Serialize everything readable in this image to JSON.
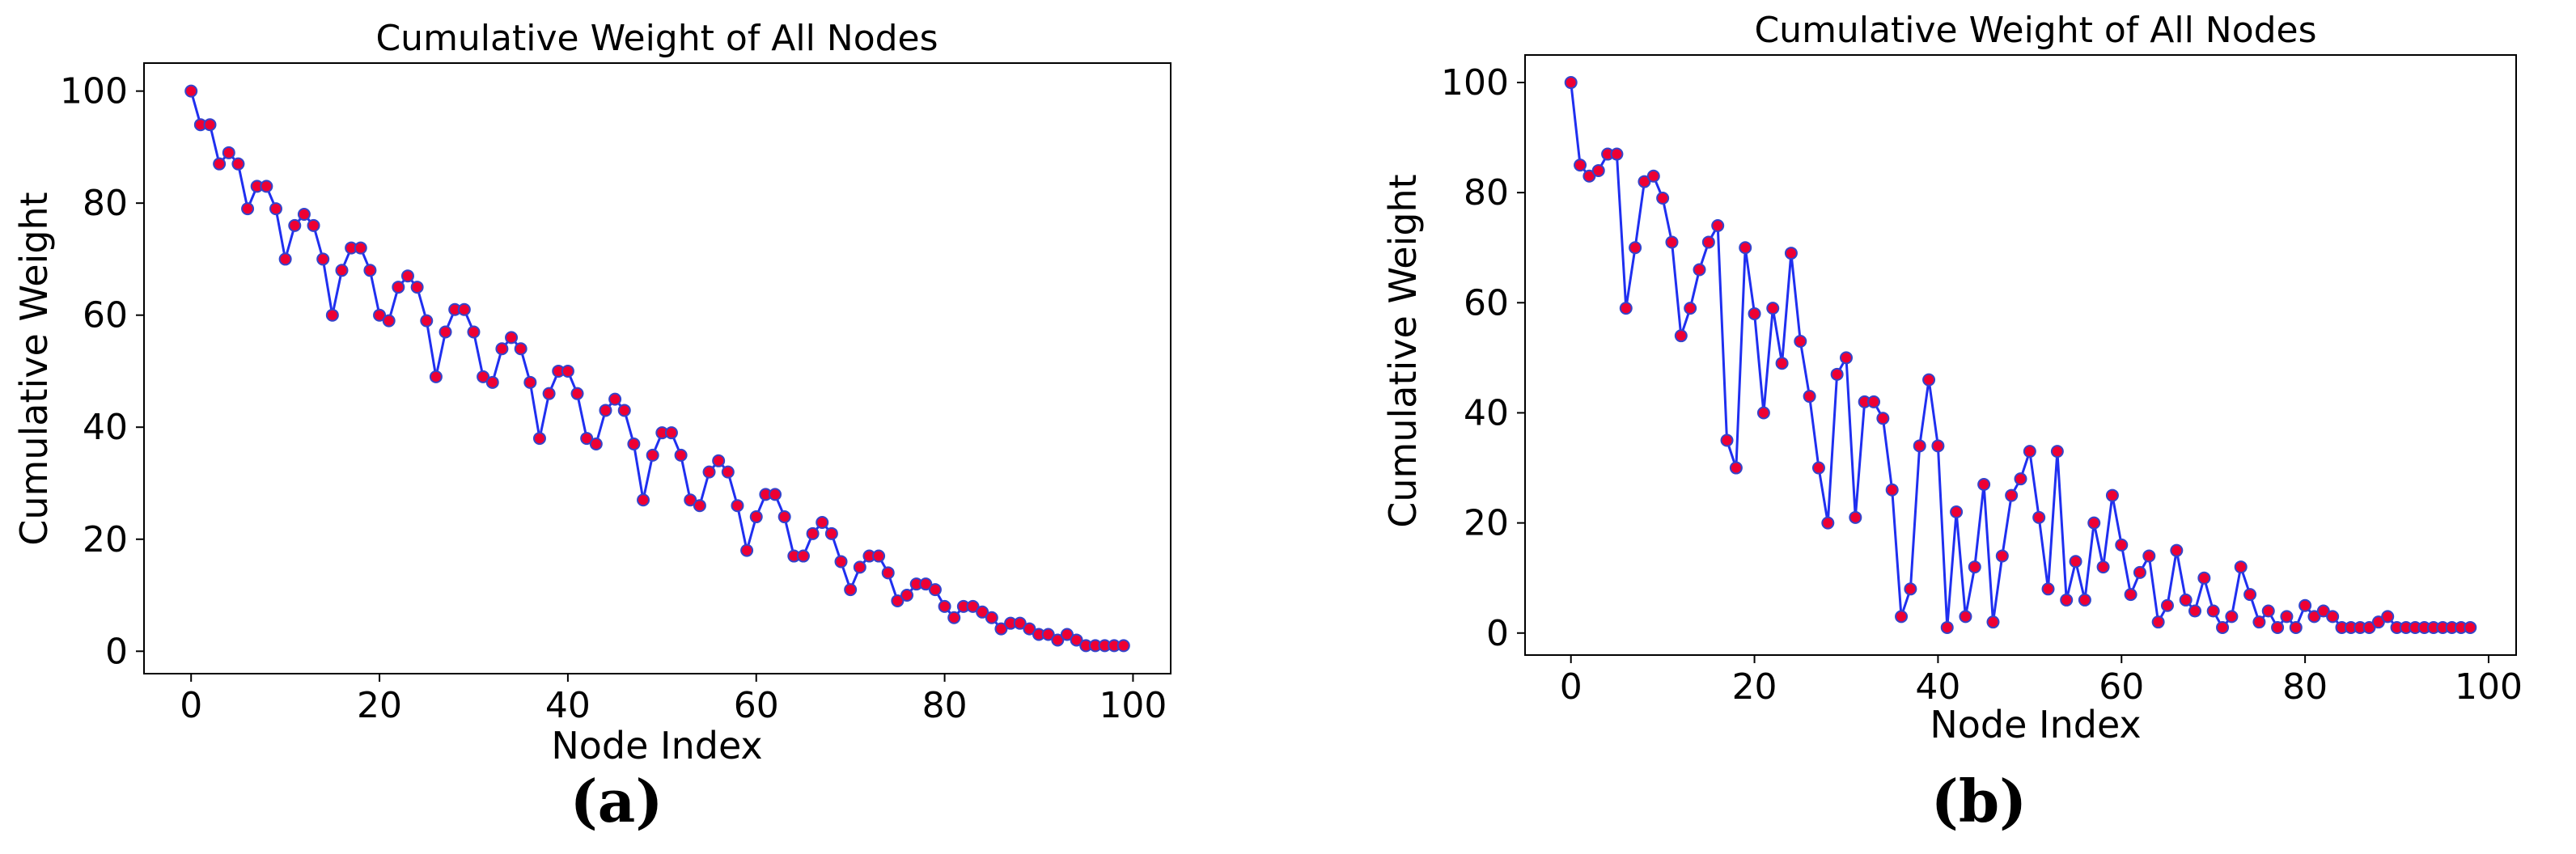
{
  "colors": {
    "line": "#1f2ff0",
    "marker_face": "#ee0033",
    "marker_edge": "#3344cc",
    "axes": "#000000"
  },
  "chart_data": [
    {
      "type": "line",
      "panel_label": "(a)",
      "title": "Cumulative Weight of All Nodes",
      "xlabel": "Node Index",
      "ylabel": "Cumulative Weight",
      "xlim": [
        -5,
        104
      ],
      "ylim": [
        -4,
        105
      ],
      "xticks": [
        "0",
        "20",
        "40",
        "60",
        "80",
        "100"
      ],
      "yticks": [
        "0",
        "20",
        "40",
        "60",
        "80",
        "100"
      ],
      "xtick_values": [
        0,
        20,
        40,
        60,
        80,
        100
      ],
      "ytick_values": [
        0,
        20,
        40,
        60,
        80,
        100
      ],
      "grid": false,
      "series": [
        {
          "x": [
            0,
            1,
            2,
            3,
            4,
            5,
            6,
            7,
            8,
            9,
            10,
            11,
            12,
            13,
            14,
            15,
            16,
            17,
            18,
            19,
            20,
            21,
            22,
            23,
            24,
            25,
            26,
            27,
            28,
            29,
            30,
            31,
            32,
            33,
            34,
            35,
            36,
            37,
            38,
            39,
            40,
            41,
            42,
            43,
            44,
            45,
            46,
            47,
            48,
            49,
            50,
            51,
            52,
            53,
            54,
            55,
            56,
            57,
            58,
            59,
            60,
            61,
            62,
            63,
            64,
            65,
            66,
            67,
            68,
            69,
            70,
            71,
            72,
            73,
            74,
            75,
            76,
            77,
            78,
            79,
            80,
            81,
            82,
            83,
            84,
            85,
            86,
            87,
            88,
            89,
            90,
            91,
            92,
            93,
            94,
            95,
            96,
            97,
            98,
            99
          ],
          "y": [
            100,
            94,
            94,
            87,
            89,
            87,
            79,
            83,
            83,
            79,
            70,
            76,
            78,
            76,
            70,
            60,
            68,
            72,
            72,
            68,
            60,
            59,
            65,
            67,
            65,
            59,
            49,
            57,
            61,
            61,
            57,
            49,
            48,
            54,
            56,
            54,
            48,
            38,
            46,
            50,
            50,
            46,
            38,
            37,
            43,
            45,
            43,
            37,
            27,
            35,
            39,
            39,
            35,
            27,
            26,
            32,
            34,
            32,
            26,
            18,
            24,
            28,
            28,
            24,
            17,
            17,
            21,
            23,
            21,
            16,
            11,
            15,
            17,
            17,
            14,
            9,
            10,
            12,
            12,
            11,
            8,
            6,
            8,
            8,
            7,
            6,
            4,
            5,
            5,
            4,
            3,
            3,
            2,
            3,
            2,
            1,
            1,
            1,
            1,
            1
          ]
        }
      ]
    },
    {
      "type": "line",
      "panel_label": "(b)",
      "title": "Cumulative Weight of All Nodes",
      "xlabel": "Node Index",
      "ylabel": "Cumulative Weight",
      "xlim": [
        -5,
        103
      ],
      "ylim": [
        -4,
        105
      ],
      "xticks": [
        "0",
        "20",
        "40",
        "60",
        "80",
        "100"
      ],
      "yticks": [
        "0",
        "20",
        "40",
        "60",
        "80",
        "100"
      ],
      "xtick_values": [
        0,
        20,
        40,
        60,
        80,
        100
      ],
      "ytick_values": [
        0,
        20,
        40,
        60,
        80,
        100
      ],
      "grid": false,
      "series": [
        {
          "x": [
            0,
            1,
            2,
            3,
            4,
            5,
            6,
            7,
            8,
            9,
            10,
            11,
            12,
            13,
            14,
            15,
            16,
            17,
            18,
            19,
            20,
            21,
            22,
            23,
            24,
            25,
            26,
            27,
            28,
            29,
            30,
            31,
            32,
            33,
            34,
            35,
            36,
            37,
            38,
            39,
            40,
            41,
            42,
            43,
            44,
            45,
            46,
            47,
            48,
            49,
            50,
            51,
            52,
            53,
            54,
            55,
            56,
            57,
            58,
            59,
            60,
            61,
            62,
            63,
            64,
            65,
            66,
            67,
            68,
            69,
            70,
            71,
            72,
            73,
            74,
            75,
            76,
            77,
            78,
            79,
            80,
            81,
            82,
            83,
            84,
            85,
            86,
            87,
            88,
            89,
            90,
            91,
            92,
            93,
            94,
            95,
            96,
            97,
            98
          ],
          "y": [
            100,
            85,
            83,
            84,
            87,
            87,
            59,
            70,
            82,
            83,
            79,
            71,
            54,
            59,
            66,
            71,
            74,
            35,
            30,
            70,
            58,
            40,
            59,
            49,
            69,
            53,
            43,
            30,
            20,
            47,
            50,
            21,
            42,
            42,
            39,
            26,
            3,
            8,
            34,
            46,
            34,
            1,
            22,
            3,
            12,
            27,
            2,
            14,
            25,
            28,
            33,
            21,
            8,
            33,
            6,
            13,
            6,
            20,
            12,
            25,
            16,
            7,
            11,
            14,
            2,
            5,
            15,
            6,
            4,
            10,
            4,
            1,
            3,
            12,
            7,
            2,
            4,
            1,
            3,
            1,
            5,
            3,
            4,
            3,
            1,
            1,
            1,
            1,
            2,
            3,
            1,
            1,
            1,
            1,
            1,
            1,
            1,
            1,
            1
          ]
        }
      ]
    }
  ]
}
